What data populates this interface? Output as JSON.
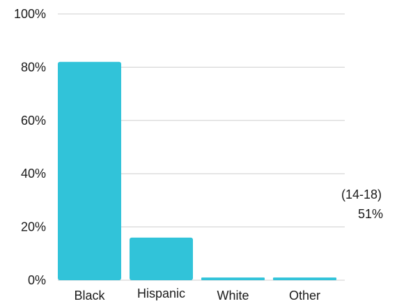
{
  "chart_data": {
    "type": "bar",
    "categories": [
      "Black",
      "Hispanic",
      "White",
      "Other"
    ],
    "values": [
      82,
      16,
      1,
      1
    ],
    "ylim": [
      0,
      100
    ],
    "yticks": [
      0,
      20,
      40,
      60,
      80,
      100
    ],
    "ytick_suffix": "%",
    "grid": true,
    "bar_color": "#31c3d9",
    "grid_color": "#cfcfcf",
    "side_note": {
      "line1": "(14-18)",
      "line2": "51%"
    }
  }
}
